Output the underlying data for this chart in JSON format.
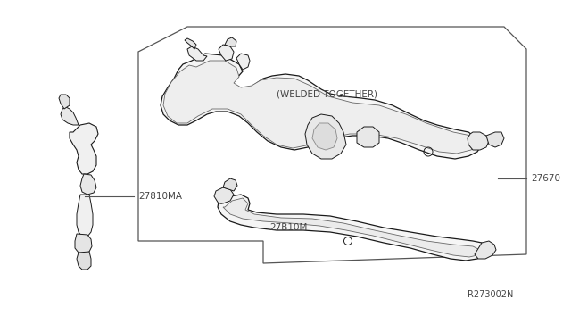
{
  "background_color": "#ffffff",
  "line_color": "#1a1a1a",
  "text_color": "#444444",
  "fig_width": 6.4,
  "fig_height": 3.72,
  "dpi": 100,
  "labels": {
    "welded_together": "(WELDED TOGETHER)",
    "part_27670": "27670",
    "part_27810MA": "27810MA",
    "part_27B10M": "27B10M",
    "reference": "R273002N"
  }
}
